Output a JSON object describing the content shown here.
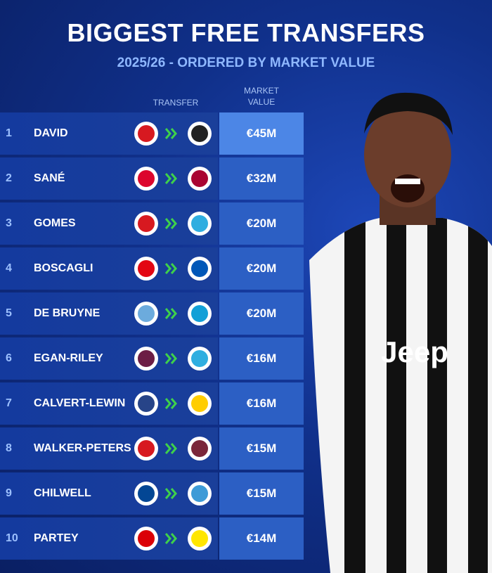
{
  "header": {
    "title": "BIGGEST FREE TRANSFERS",
    "subtitle": "2025/26 - ORDERED BY MARKET VALUE"
  },
  "table": {
    "columns": [
      "TRANSFER",
      "MARKET VALUE"
    ],
    "rows": [
      [
        "1",
        "DAVID",
        "€45M"
      ],
      [
        "2",
        "SANÉ",
        "€32M"
      ],
      [
        "3",
        "GOMES",
        "€20M"
      ],
      [
        "4",
        "BOSCAGLI",
        "€20M"
      ],
      [
        "5",
        "DE BRUYNE",
        "€20M"
      ],
      [
        "6",
        "EGAN-RILEY",
        "€16M"
      ],
      [
        "7",
        "CALVERT-LEWIN",
        "€16M"
      ],
      [
        "8",
        "WALKER-PETERS",
        "€15M"
      ],
      [
        "9",
        "CHILWELL",
        "€15M"
      ],
      [
        "10",
        "PARTEY",
        "€14M"
      ]
    ]
  }
}
